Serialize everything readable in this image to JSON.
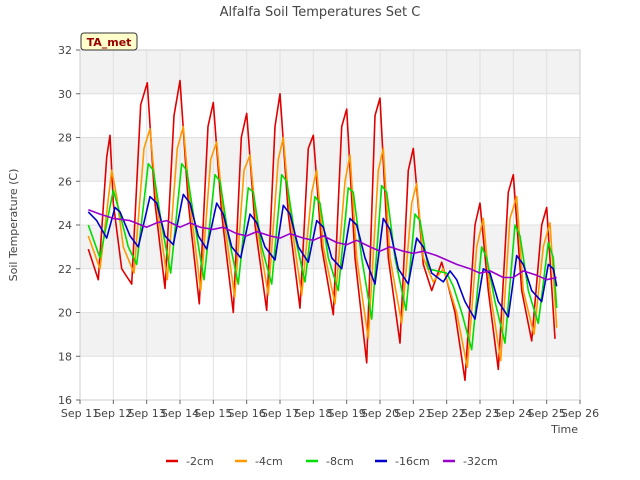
{
  "chart_data": {
    "type": "line",
    "title": "Alfalfa Soil Temperatures Set C",
    "xlabel": "Time",
    "ylabel": "Soil Temperature (C)",
    "annotation": "TA_met",
    "xlim": [
      11,
      26
    ],
    "ylim": [
      16,
      32
    ],
    "xticks": [
      11,
      12,
      13,
      14,
      15,
      16,
      17,
      18,
      19,
      20,
      21,
      22,
      23,
      24,
      25,
      26
    ],
    "xtick_labels": [
      "Sep 11",
      "Sep 12",
      "Sep 13",
      "Sep 14",
      "Sep 15",
      "Sep 16",
      "Sep 17",
      "Sep 18",
      "Sep 19",
      "Sep 20",
      "Sep 21",
      "Sep 22",
      "Sep 23",
      "Sep 24",
      "Sep 25",
      "Sep 26"
    ],
    "yticks": [
      16,
      18,
      20,
      22,
      24,
      26,
      28,
      30,
      32
    ],
    "ytick_labels": [
      "16",
      "18",
      "20",
      "22",
      "24",
      "26",
      "28",
      "30",
      "32"
    ],
    "grid": true,
    "legend_position": "bottom",
    "series": [
      {
        "name": "-2cm",
        "color": "#e00000",
        "x": [
          11.25,
          11.55,
          11.8,
          11.9,
          12.0,
          12.25,
          12.55,
          12.82,
          13.02,
          13.25,
          13.55,
          13.82,
          14.0,
          14.25,
          14.58,
          14.84,
          15.0,
          15.25,
          15.6,
          15.84,
          16.0,
          16.25,
          16.6,
          16.85,
          17.0,
          17.25,
          17.6,
          17.85,
          18.0,
          18.25,
          18.6,
          18.85,
          19.0,
          19.25,
          19.6,
          19.85,
          20.0,
          20.25,
          20.6,
          20.85,
          21.0,
          21.3,
          21.55,
          21.85,
          22.0,
          22.25,
          22.55,
          22.85,
          23.0,
          23.25,
          23.55,
          23.85,
          24.0,
          24.25,
          24.55,
          24.85,
          25.0,
          25.25
        ],
        "y": [
          22.9,
          21.5,
          27.1,
          28.1,
          25.0,
          22.0,
          21.3,
          29.5,
          30.5,
          25.0,
          21.1,
          29.0,
          30.6,
          25.0,
          20.4,
          28.5,
          29.6,
          24.5,
          20.0,
          28.0,
          29.1,
          24.0,
          20.1,
          28.5,
          30.0,
          24.5,
          20.2,
          27.5,
          28.1,
          23.0,
          19.9,
          28.5,
          29.3,
          22.5,
          17.7,
          29.0,
          29.8,
          22.5,
          18.6,
          26.5,
          27.5,
          22.2,
          21.0,
          22.3,
          21.5,
          20.0,
          16.9,
          24.0,
          25.0,
          21.0,
          17.4,
          25.5,
          26.3,
          21.0,
          18.7,
          24.0,
          24.8,
          18.8
        ]
      },
      {
        "name": "-4cm",
        "color": "#ff9900",
        "x": [
          11.25,
          11.6,
          11.95,
          12.1,
          12.3,
          12.62,
          12.92,
          13.1,
          13.3,
          13.62,
          13.92,
          14.1,
          14.3,
          14.62,
          14.92,
          15.1,
          15.3,
          15.64,
          15.92,
          16.1,
          16.3,
          16.65,
          16.95,
          17.1,
          17.3,
          17.65,
          17.95,
          18.1,
          18.3,
          18.65,
          18.95,
          19.1,
          19.3,
          19.65,
          19.95,
          20.1,
          20.3,
          20.65,
          20.95,
          21.1,
          21.3,
          21.6,
          21.9,
          22.1,
          22.3,
          22.62,
          22.9,
          23.1,
          23.3,
          23.62,
          23.9,
          24.1,
          24.3,
          24.62,
          24.9,
          25.1,
          25.3
        ],
        "y": [
          23.5,
          22.0,
          26.5,
          25.3,
          23.0,
          21.8,
          27.5,
          28.4,
          25.0,
          21.5,
          27.5,
          28.5,
          25.0,
          21.0,
          27.0,
          27.8,
          24.5,
          20.7,
          26.5,
          27.2,
          24.0,
          20.8,
          27.0,
          28.0,
          24.5,
          20.8,
          25.5,
          26.5,
          23.0,
          20.4,
          26.0,
          27.2,
          22.5,
          18.8,
          26.5,
          27.5,
          22.5,
          19.5,
          25.0,
          25.9,
          22.5,
          21.4,
          22.0,
          21.0,
          20.0,
          17.5,
          23.0,
          24.3,
          21.0,
          17.8,
          24.3,
          25.3,
          21.0,
          19.0,
          23.0,
          24.1,
          19.3
        ]
      },
      {
        "name": "-8cm",
        "color": "#00dd00",
        "x": [
          11.25,
          11.6,
          12.0,
          12.2,
          12.45,
          12.7,
          13.05,
          13.2,
          13.45,
          13.72,
          14.05,
          14.2,
          14.45,
          14.72,
          15.05,
          15.2,
          15.45,
          15.75,
          16.05,
          16.2,
          16.45,
          16.75,
          17.05,
          17.2,
          17.45,
          17.75,
          18.05,
          18.2,
          18.45,
          18.75,
          19.05,
          19.2,
          19.45,
          19.75,
          20.05,
          20.2,
          20.45,
          20.78,
          21.05,
          21.2,
          21.45,
          21.7,
          22.0,
          22.2,
          22.45,
          22.75,
          23.05,
          23.2,
          23.45,
          23.75,
          24.05,
          24.2,
          24.45,
          24.75,
          25.05,
          25.2,
          25.3
        ],
        "y": [
          24.0,
          22.5,
          25.6,
          24.5,
          23.0,
          22.2,
          26.8,
          26.5,
          24.0,
          21.8,
          26.8,
          26.5,
          24.0,
          21.5,
          26.3,
          26.0,
          23.5,
          21.3,
          25.7,
          25.5,
          23.0,
          21.3,
          26.3,
          26.0,
          23.5,
          21.4,
          25.3,
          25.0,
          22.5,
          21.0,
          25.7,
          25.5,
          22.5,
          19.7,
          25.8,
          25.5,
          22.5,
          20.1,
          24.5,
          24.2,
          22.0,
          21.9,
          21.8,
          21.2,
          20.0,
          18.3,
          23.0,
          22.5,
          20.5,
          18.6,
          24.0,
          23.5,
          21.0,
          19.5,
          23.2,
          22.5,
          20.2
        ]
      },
      {
        "name": "-16cm",
        "color": "#0000cc",
        "x": [
          11.25,
          11.5,
          11.8,
          12.05,
          12.2,
          12.5,
          12.75,
          13.1,
          13.3,
          13.55,
          13.8,
          14.1,
          14.3,
          14.55,
          14.8,
          15.1,
          15.3,
          15.55,
          15.82,
          16.1,
          16.3,
          16.55,
          16.85,
          17.1,
          17.3,
          17.55,
          17.85,
          18.1,
          18.3,
          18.55,
          18.85,
          19.1,
          19.3,
          19.55,
          19.85,
          20.1,
          20.3,
          20.55,
          20.85,
          21.1,
          21.3,
          21.55,
          21.9,
          22.1,
          22.3,
          22.55,
          22.85,
          23.1,
          23.3,
          23.55,
          23.85,
          24.1,
          24.3,
          24.55,
          24.85,
          25.05,
          25.2,
          25.3
        ],
        "y": [
          24.6,
          24.2,
          23.4,
          24.8,
          24.6,
          23.5,
          23.0,
          25.3,
          25.0,
          23.5,
          23.1,
          25.4,
          25.0,
          23.5,
          22.9,
          25.0,
          24.5,
          23.0,
          22.5,
          24.5,
          24.1,
          23.0,
          22.4,
          24.9,
          24.5,
          23.0,
          22.3,
          24.2,
          23.9,
          22.5,
          22.0,
          24.3,
          24.0,
          22.5,
          21.3,
          24.3,
          23.8,
          22.0,
          21.3,
          23.4,
          23.0,
          21.8,
          21.4,
          21.9,
          21.5,
          20.5,
          19.7,
          22.0,
          21.8,
          20.5,
          19.8,
          22.6,
          22.2,
          21.0,
          20.5,
          22.2,
          22.0,
          21.2
        ]
      },
      {
        "name": "-32cm",
        "color": "#9900cc",
        "x": [
          11.25,
          11.6,
          12.0,
          12.5,
          13.0,
          13.3,
          13.6,
          14.0,
          14.3,
          14.6,
          15.0,
          15.3,
          15.7,
          16.0,
          16.3,
          16.7,
          17.0,
          17.3,
          17.7,
          18.0,
          18.3,
          18.7,
          19.0,
          19.3,
          19.7,
          20.0,
          20.3,
          20.7,
          21.0,
          21.3,
          21.7,
          22.0,
          22.3,
          22.7,
          23.0,
          23.3,
          23.7,
          24.0,
          24.3,
          24.7,
          25.0,
          25.3
        ],
        "y": [
          24.7,
          24.5,
          24.3,
          24.2,
          23.9,
          24.1,
          24.2,
          23.9,
          24.1,
          23.9,
          23.8,
          23.9,
          23.6,
          23.5,
          23.7,
          23.5,
          23.4,
          23.6,
          23.4,
          23.3,
          23.5,
          23.2,
          23.1,
          23.3,
          23.0,
          22.8,
          23.0,
          22.8,
          22.7,
          22.8,
          22.6,
          22.4,
          22.2,
          22.0,
          21.8,
          21.9,
          21.6,
          21.6,
          21.9,
          21.7,
          21.5,
          21.6
        ]
      }
    ]
  }
}
